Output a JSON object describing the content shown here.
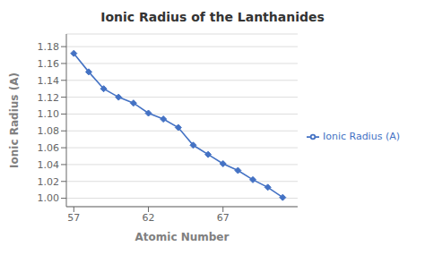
{
  "chart_data": {
    "type": "line",
    "title": "Ionic Radius of the Lanthanides",
    "xlabel": "Atomic Number",
    "ylabel": "Ionic Radius (A)",
    "x": [
      57,
      58,
      59,
      60,
      61,
      62,
      63,
      64,
      65,
      66,
      67,
      68,
      69,
      70,
      71
    ],
    "series": [
      {
        "name": "Ionic Radius (A)",
        "color": "#4472C4",
        "marker": "diamond",
        "values": [
          1.172,
          1.15,
          1.13,
          1.12,
          1.113,
          1.101,
          1.094,
          1.084,
          1.063,
          1.052,
          1.041,
          1.033,
          1.022,
          1.013,
          1.001
        ]
      }
    ],
    "xlim": [
      56.5,
      72
    ],
    "ylim": [
      0.99,
      1.195
    ],
    "xticks": [
      57,
      62,
      67
    ],
    "yticks": [
      {
        "value": 1.0,
        "label": "1.00"
      },
      1.02,
      1.04,
      1.06,
      1.08,
      {
        "value": 1.1,
        "label": "1.10"
      },
      1.12,
      1.14,
      1.16,
      1.18
    ],
    "grid": true,
    "legend": "right"
  }
}
